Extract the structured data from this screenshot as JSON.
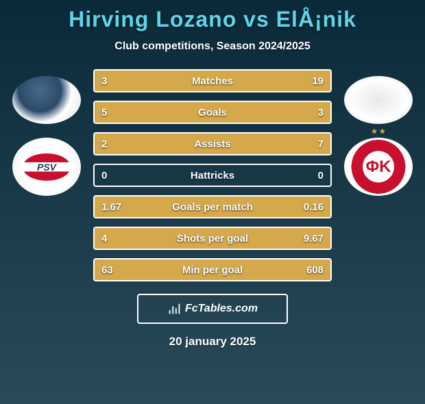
{
  "title": "Hirving Lozano vs ElÅ¡nik",
  "subtitle": "Club competitions, Season 2024/2025",
  "date": "20 january 2025",
  "watermark_text": "FcTables.com",
  "colors": {
    "background_gradient": [
      "#0a2a3a",
      "#1a3a4a",
      "#2a4a5a"
    ],
    "title_color": "#5fd4e8",
    "text_color": "#ffffff",
    "bar_fill": "#d4a84b",
    "border_color": "#ffffff"
  },
  "typography": {
    "title_fontsize": 32,
    "subtitle_fontsize": 16,
    "stat_fontsize": 15,
    "date_fontsize": 17
  },
  "players": {
    "left": {
      "name": "Hirving Lozano",
      "club": "PSV",
      "club_logo_label": "PSV"
    },
    "right": {
      "name": "ElÅ¡nik",
      "club": "Crvena Zvezda",
      "club_logo_label": "ΦK"
    }
  },
  "stats": [
    {
      "label": "Matches",
      "left_val": "3",
      "right_val": "19",
      "left_pct": 17,
      "right_pct": 83
    },
    {
      "label": "Goals",
      "left_val": "5",
      "right_val": "3",
      "left_pct": 62,
      "right_pct": 38
    },
    {
      "label": "Assists",
      "left_val": "2",
      "right_val": "7",
      "left_pct": 22,
      "right_pct": 78
    },
    {
      "label": "Hattricks",
      "left_val": "0",
      "right_val": "0",
      "left_pct": 0,
      "right_pct": 0
    },
    {
      "label": "Goals per match",
      "left_val": "1.67",
      "right_val": "0.16",
      "left_pct": 91,
      "right_pct": 9
    },
    {
      "label": "Shots per goal",
      "left_val": "4",
      "right_val": "9.67",
      "left_pct": 30,
      "right_pct": 70
    },
    {
      "label": "Min per goal",
      "left_val": "63",
      "right_val": "608",
      "left_pct": 10,
      "right_pct": 90
    }
  ]
}
